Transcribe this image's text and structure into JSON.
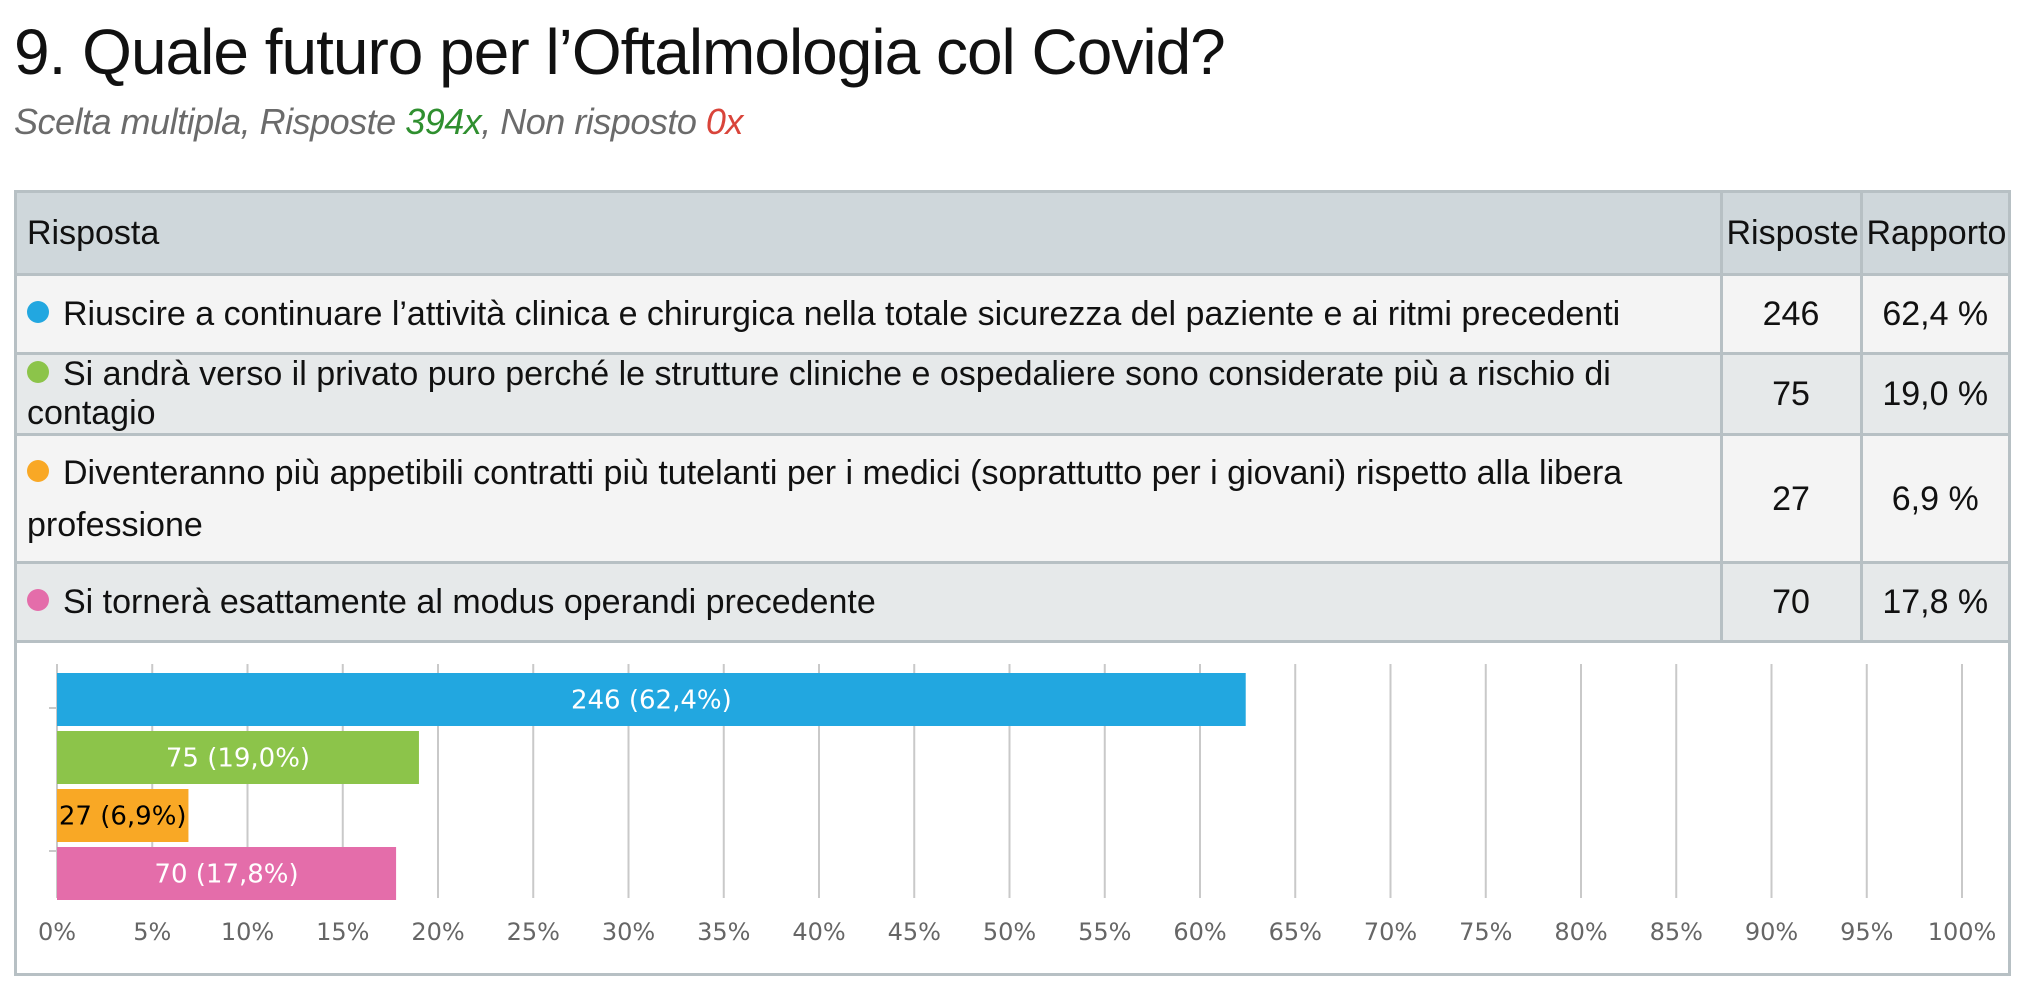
{
  "header": {
    "title": "9. Quale futuro per l’Oftalmologia col Covid?",
    "subtitle_prefix": "Scelta multipla, Risposte ",
    "answered": "394x",
    "subtitle_mid": ", Non risposto ",
    "unanswered": "0x"
  },
  "table": {
    "headers": {
      "answer": "Risposta",
      "count": "Risposte",
      "ratio": "Rapporto"
    },
    "rows": [
      {
        "label": "Riuscire a continuare l’attività clinica e chirurgica nella totale sicurezza del paziente e ai ritmi precedenti",
        "count": "246",
        "ratio": "62,4 %",
        "color": "#22a7e0"
      },
      {
        "label": "Si andrà verso il privato puro perché le strutture cliniche e ospedaliere sono considerate più a rischio di contagio",
        "count": "75",
        "ratio": "19,0 %",
        "color": "#8cc44a"
      },
      {
        "label": "Diventeranno più appetibili contratti più tutelanti per i medici (soprattutto per i giovani) rispetto alla libera professione",
        "count": "27",
        "ratio": "6,9 %",
        "color": "#f9a825"
      },
      {
        "label": "Si tornerà esattamente al modus operandi precedente",
        "count": "70",
        "ratio": "17,8 %",
        "color": "#e46daa"
      }
    ]
  },
  "chart_data": {
    "type": "bar",
    "orientation": "horizontal",
    "categories": [
      "Riuscire a continuare l’attività clinica e chirurgica nella totale sicurezza del paziente e ai ritmi precedenti",
      "Si andrà verso il privato puro perché le strutture cliniche e ospedaliere sono considerate più a rischio di contagio",
      "Diventeranno più appetibili contratti più tutelanti per i medici (soprattutto per i giovani) rispetto alla libera professione",
      "Si tornerà esattamente al modus operandi precedente"
    ],
    "values": [
      62.4,
      19.0,
      6.9,
      17.8
    ],
    "data_labels": [
      "246 (62,4%)",
      "75 (19,0%)",
      "27 (6,9%)",
      "70 (17,8%)"
    ],
    "label_colors": [
      "#ffffff",
      "#ffffff",
      "#000000",
      "#ffffff"
    ],
    "colors": [
      "#22a7e0",
      "#8cc44a",
      "#f9a825",
      "#e46daa"
    ],
    "xlim": [
      0,
      100
    ],
    "xticks": [
      "0%",
      "5%",
      "10%",
      "15%",
      "20%",
      "25%",
      "30%",
      "35%",
      "40%",
      "45%",
      "50%",
      "55%",
      "60%",
      "65%",
      "70%",
      "75%",
      "80%",
      "85%",
      "90%",
      "95%",
      "100%"
    ],
    "grid": true
  }
}
